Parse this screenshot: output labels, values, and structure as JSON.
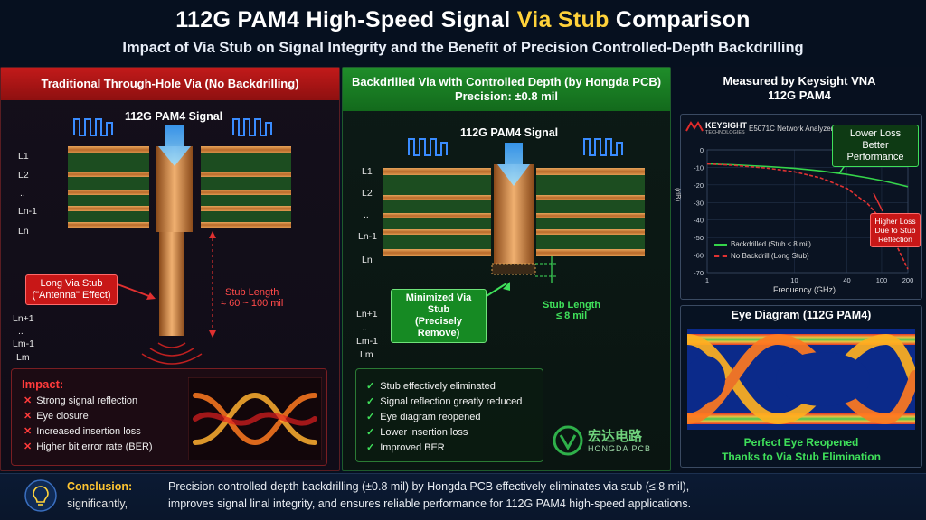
{
  "title": {
    "main_prefix": "112G PAM4 High-Speed Signal ",
    "main_highlight": "Via Stub",
    "main_suffix": " Comparison",
    "subtitle": "Impact of Via Stub on Signal Integrity and the Benefit of Precision Controlled-Depth Backdrilling"
  },
  "left": {
    "header": "Traditional Through-Hole Via (No Backdrilling)",
    "signal_label": "112G PAM4 Signal",
    "layers_top": [
      "L1",
      "L2",
      "..",
      "Ln-1",
      "Ln"
    ],
    "layers_bottom": [
      "Ln+1",
      "..",
      "Lm-1",
      "Lm"
    ],
    "stub_tag_line1": "Long Via Stub",
    "stub_tag_line2": "(\"Antenna\" Effect)",
    "stub_length_line1": "Stub Length",
    "stub_length_line2": "≈ 60 ~ 100 mil",
    "impact_title": "Impact:",
    "impacts": [
      "Strong signal reflection",
      "Eye closure",
      "Increased insertion loss",
      "Higher bit error rate (BER)"
    ]
  },
  "middle": {
    "header_line1": "Backdrilled Via with Controlled Depth (by Hongda PCB)",
    "header_line2": "Precision: ±0.8 mil",
    "signal_label": "112G PAM4 Signal",
    "layers_top": [
      "L1",
      "L2",
      "..",
      "Ln-1",
      "Ln"
    ],
    "layers_bottom": [
      "Ln+1",
      "..",
      "Lm-1",
      "Lm"
    ],
    "stub_tag_line1": "Minimized Via Stub",
    "stub_tag_line2": "(Precisely Remove)",
    "stub_length_line1": "Stub Length",
    "stub_length_line2": "≤ 8 mil",
    "benefits": [
      "Stub effectively eliminated",
      "Signal reflection greatly reduced",
      "Eye diagram reopened",
      "Lower insertion loss",
      "Improved BER"
    ],
    "logo_cn": "宏达电路",
    "logo_en": "HONGDA PCB"
  },
  "right": {
    "header_line1": "Measured by Keysight VNA",
    "header_line2": "112G PAM4",
    "brand": "KEYSIGHT",
    "brand_sub": "TECHNOLOGIES",
    "instrument": "E5071C Network Analyzer",
    "callout_good_line1": "Lower Loss",
    "callout_good_line2": "Better Performance",
    "callout_bad_line1": "Higher Loss",
    "callout_bad_line2": "Due to Stub",
    "callout_bad_line3": "Reflection",
    "eye_title": "Eye Diagram (112G PAM4)",
    "eye_caption_line1": "Perfect Eye Reopened",
    "eye_caption_line2": "Thanks to Via Stub Elimination"
  },
  "chart_data": {
    "type": "line",
    "title": "",
    "xlabel": "Frequency (GHz)",
    "ylabel": "(dB)",
    "x_ticks": [
      "1",
      "10",
      "40",
      "100",
      "200"
    ],
    "y_ticks": [
      "0",
      "-10",
      "-20",
      "-30",
      "-40",
      "-50",
      "-60",
      "-70"
    ],
    "x_scale": "log",
    "xlim": [
      1,
      200
    ],
    "ylim": [
      -70,
      0
    ],
    "legend_position": "bottom-left",
    "series": [
      {
        "name": "Backdrilled (Stub ≤ 8 mil)",
        "color": "#35d44a",
        "style": "solid",
        "x": [
          1,
          2,
          5,
          10,
          20,
          40,
          70,
          100,
          150,
          200
        ],
        "y": [
          -8,
          -8.5,
          -9.5,
          -10.5,
          -12,
          -14,
          -16,
          -17.5,
          -19.5,
          -21
        ]
      },
      {
        "name": "No Backdrill (Long Stub)",
        "color": "#e03232",
        "style": "dashed",
        "x": [
          1,
          2,
          5,
          10,
          20,
          40,
          70,
          100,
          150,
          200
        ],
        "y": [
          -8,
          -8.8,
          -10.5,
          -12.5,
          -16,
          -22,
          -31,
          -40,
          -55,
          -68
        ]
      }
    ]
  },
  "conclusion": {
    "label": "Conclusion:",
    "label_sub": "significantly,",
    "line1": "Precision controlled-depth backdrilling (±0.8 mil) by Hongda PCB effectively eliminates via stub (≤ 8 mil),",
    "line2": "improves signal linal integrity, and ensures reliable performance for 112G PAM4 high-speed applications."
  },
  "colors": {
    "accent_yellow": "#ffd23a",
    "red": "#c21a1a",
    "green": "#1f8d2a",
    "copper": "#c77a35",
    "board_green": "#1f5a22"
  }
}
